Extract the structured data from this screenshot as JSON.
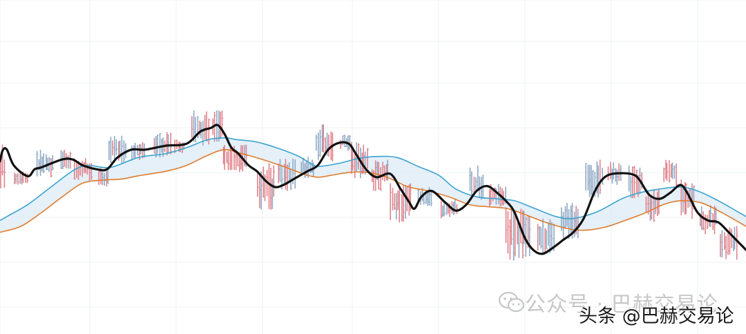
{
  "chart_data": {
    "type": "bar",
    "subtype": "ohlc-price-bars-with-moving-averages",
    "title": "",
    "xlabel": "",
    "ylabel": "",
    "grid": true,
    "ylim": [
      0,
      100
    ],
    "colors": {
      "up_bar": "#8fa9c4",
      "down_bar": "#e0828a",
      "fast_ma": "#111111",
      "upper_band": "#3aa3d0",
      "lower_band": "#e07b2a",
      "band_fill": "#dcebf7",
      "grid": "#eef1f4"
    },
    "fast_ma": [
      [
        0,
        53
      ],
      [
        4,
        58.7
      ],
      [
        10,
        59
      ],
      [
        20,
        51
      ],
      [
        40,
        45.5
      ],
      [
        50,
        49
      ],
      [
        60,
        50
      ],
      [
        90,
        54
      ],
      [
        105,
        54
      ],
      [
        120,
        51
      ],
      [
        140,
        49
      ],
      [
        155,
        49
      ],
      [
        170,
        55
      ],
      [
        190,
        59
      ],
      [
        210,
        59
      ],
      [
        240,
        61
      ],
      [
        270,
        62
      ],
      [
        290,
        68.2
      ],
      [
        305,
        70
      ],
      [
        315,
        71.5
      ],
      [
        325,
        67
      ],
      [
        335,
        60
      ],
      [
        345,
        57
      ],
      [
        360,
        51
      ],
      [
        372,
        48
      ],
      [
        385,
        43
      ],
      [
        398,
        40
      ],
      [
        410,
        41
      ],
      [
        425,
        44
      ],
      [
        445,
        48
      ],
      [
        460,
        51
      ],
      [
        475,
        59
      ],
      [
        490,
        62.4
      ],
      [
        505,
        62
      ],
      [
        515,
        57
      ],
      [
        530,
        49
      ],
      [
        545,
        45
      ],
      [
        565,
        46.7
      ],
      [
        580,
        39
      ],
      [
        592,
        32.5
      ],
      [
        600,
        29
      ],
      [
        610,
        35
      ],
      [
        625,
        38
      ],
      [
        645,
        32
      ],
      [
        660,
        28
      ],
      [
        675,
        31
      ],
      [
        690,
        38
      ],
      [
        705,
        40.5
      ],
      [
        720,
        37
      ],
      [
        735,
        32
      ],
      [
        745,
        27
      ],
      [
        760,
        14
      ],
      [
        772,
        8
      ],
      [
        785,
        6
      ],
      [
        800,
        9
      ],
      [
        815,
        13
      ],
      [
        830,
        17
      ],
      [
        845,
        24
      ],
      [
        860,
        37
      ],
      [
        870,
        43
      ],
      [
        880,
        46
      ],
      [
        895,
        47
      ],
      [
        915,
        46.5
      ],
      [
        925,
        44
      ],
      [
        940,
        36
      ],
      [
        955,
        34
      ],
      [
        970,
        37
      ],
      [
        985,
        41
      ],
      [
        995,
        37
      ],
      [
        1010,
        27
      ],
      [
        1025,
        23
      ],
      [
        1040,
        22
      ],
      [
        1055,
        17
      ],
      [
        1080,
        8
      ]
    ],
    "upper_band": [
      [
        0,
        23
      ],
      [
        10,
        25
      ],
      [
        40,
        31
      ],
      [
        70,
        39
      ],
      [
        100,
        47
      ],
      [
        115,
        50
      ],
      [
        130,
        51
      ],
      [
        160,
        50
      ],
      [
        200,
        55
      ],
      [
        240,
        57
      ],
      [
        270,
        60
      ],
      [
        300,
        64
      ],
      [
        325,
        65
      ],
      [
        345,
        64
      ],
      [
        370,
        63
      ],
      [
        400,
        60
      ],
      [
        430,
        56
      ],
      [
        445,
        53
      ],
      [
        460,
        50.5
      ],
      [
        490,
        52
      ],
      [
        520,
        54.6
      ],
      [
        545,
        55.5
      ],
      [
        575,
        55
      ],
      [
        605,
        50.5
      ],
      [
        635,
        46
      ],
      [
        660,
        39
      ],
      [
        690,
        35
      ],
      [
        720,
        34
      ],
      [
        745,
        33
      ],
      [
        775,
        29
      ],
      [
        805,
        25
      ],
      [
        830,
        24
      ],
      [
        865,
        27.5
      ],
      [
        900,
        34
      ],
      [
        925,
        37
      ],
      [
        955,
        39
      ],
      [
        985,
        40
      ],
      [
        1010,
        38
      ],
      [
        1040,
        33
      ],
      [
        1080,
        25
      ]
    ],
    "lower_band": [
      [
        0,
        17
      ],
      [
        30,
        20
      ],
      [
        60,
        27
      ],
      [
        90,
        35
      ],
      [
        120,
        42
      ],
      [
        150,
        43.5
      ],
      [
        175,
        44
      ],
      [
        200,
        45.7
      ],
      [
        240,
        48
      ],
      [
        270,
        51
      ],
      [
        300,
        56
      ],
      [
        325,
        59
      ],
      [
        350,
        57
      ],
      [
        380,
        54
      ],
      [
        410,
        50.5
      ],
      [
        440,
        46.6
      ],
      [
        460,
        45
      ],
      [
        480,
        46
      ],
      [
        505,
        47.4
      ],
      [
        530,
        47.5
      ],
      [
        560,
        45
      ],
      [
        590,
        40.2
      ],
      [
        620,
        38
      ],
      [
        650,
        35
      ],
      [
        680,
        31
      ],
      [
        705,
        30
      ],
      [
        735,
        29
      ],
      [
        760,
        26
      ],
      [
        790,
        22
      ],
      [
        820,
        19
      ],
      [
        845,
        18
      ],
      [
        875,
        19.5
      ],
      [
        905,
        23
      ],
      [
        935,
        27
      ],
      [
        960,
        31
      ],
      [
        985,
        33
      ],
      [
        1015,
        32
      ],
      [
        1045,
        27
      ],
      [
        1080,
        20
      ]
    ],
    "bar_clusters": [
      {
        "x": 0,
        "top": 62,
        "bottom": 38,
        "dir": "down",
        "n": 6
      },
      {
        "x": 30,
        "top": 48,
        "bottom": 41,
        "dir": "down",
        "n": 8
      },
      {
        "x": 65,
        "top": 59,
        "bottom": 44,
        "dir": "up",
        "n": 10
      },
      {
        "x": 95,
        "top": 59,
        "bottom": 48,
        "dir": "up",
        "n": 6
      },
      {
        "x": 120,
        "top": 55,
        "bottom": 43,
        "dir": "down",
        "n": 10
      },
      {
        "x": 150,
        "top": 50,
        "bottom": 40,
        "dir": "up",
        "n": 6
      },
      {
        "x": 170,
        "top": 68,
        "bottom": 51,
        "dir": "up",
        "n": 10
      },
      {
        "x": 200,
        "top": 63,
        "bottom": 53,
        "dir": "up",
        "n": 8
      },
      {
        "x": 235,
        "top": 68,
        "bottom": 55,
        "dir": "up",
        "n": 10
      },
      {
        "x": 260,
        "top": 65,
        "bottom": 57,
        "dir": "down",
        "n": 6
      },
      {
        "x": 290,
        "top": 79,
        "bottom": 60,
        "dir": "up",
        "n": 10
      },
      {
        "x": 315,
        "top": 79,
        "bottom": 63,
        "dir": "down",
        "n": 6
      },
      {
        "x": 340,
        "top": 62,
        "bottom": 47,
        "dir": "down",
        "n": 14
      },
      {
        "x": 385,
        "top": 52,
        "bottom": 28,
        "dir": "down",
        "n": 10
      },
      {
        "x": 415,
        "top": 55,
        "bottom": 38,
        "dir": "up",
        "n": 10
      },
      {
        "x": 445,
        "top": 56,
        "bottom": 44,
        "dir": "up",
        "n": 8
      },
      {
        "x": 470,
        "top": 72,
        "bottom": 52,
        "dir": "up",
        "n": 10
      },
      {
        "x": 500,
        "top": 67,
        "bottom": 58,
        "dir": "up",
        "n": 6
      },
      {
        "x": 520,
        "top": 63,
        "bottom": 44,
        "dir": "down",
        "n": 10
      },
      {
        "x": 550,
        "top": 54,
        "bottom": 38,
        "dir": "down",
        "n": 10
      },
      {
        "x": 580,
        "top": 42,
        "bottom": 22,
        "dir": "down",
        "n": 12
      },
      {
        "x": 615,
        "top": 40,
        "bottom": 30,
        "dir": "up",
        "n": 8
      },
      {
        "x": 650,
        "top": 34,
        "bottom": 24,
        "dir": "down",
        "n": 10
      },
      {
        "x": 690,
        "top": 51,
        "bottom": 33,
        "dir": "up",
        "n": 8
      },
      {
        "x": 720,
        "top": 42,
        "bottom": 30,
        "dir": "down",
        "n": 10
      },
      {
        "x": 750,
        "top": 30,
        "bottom": 2,
        "dir": "down",
        "n": 14
      },
      {
        "x": 790,
        "top": 24,
        "bottom": 6,
        "dir": "up",
        "n": 10
      },
      {
        "x": 825,
        "top": 33,
        "bottom": 13,
        "dir": "up",
        "n": 10
      },
      {
        "x": 860,
        "top": 55,
        "bottom": 34,
        "dir": "up",
        "n": 10
      },
      {
        "x": 890,
        "top": 53,
        "bottom": 41,
        "dir": "up",
        "n": 8
      },
      {
        "x": 920,
        "top": 51,
        "bottom": 34,
        "dir": "down",
        "n": 8
      },
      {
        "x": 945,
        "top": 40,
        "bottom": 21,
        "dir": "down",
        "n": 8
      },
      {
        "x": 970,
        "top": 55,
        "bottom": 40,
        "dir": "up",
        "n": 8
      },
      {
        "x": 995,
        "top": 44,
        "bottom": 23,
        "dir": "down",
        "n": 8
      },
      {
        "x": 1025,
        "top": 31,
        "bottom": 16,
        "dir": "down",
        "n": 10
      },
      {
        "x": 1055,
        "top": 21,
        "bottom": 3,
        "dir": "down",
        "n": 10
      }
    ]
  },
  "watermark": {
    "icon": "wechat-icon",
    "wechat_text": "公众号 · 巴赫交易论",
    "toutiao_text": "头条 @巴赫交易论"
  }
}
